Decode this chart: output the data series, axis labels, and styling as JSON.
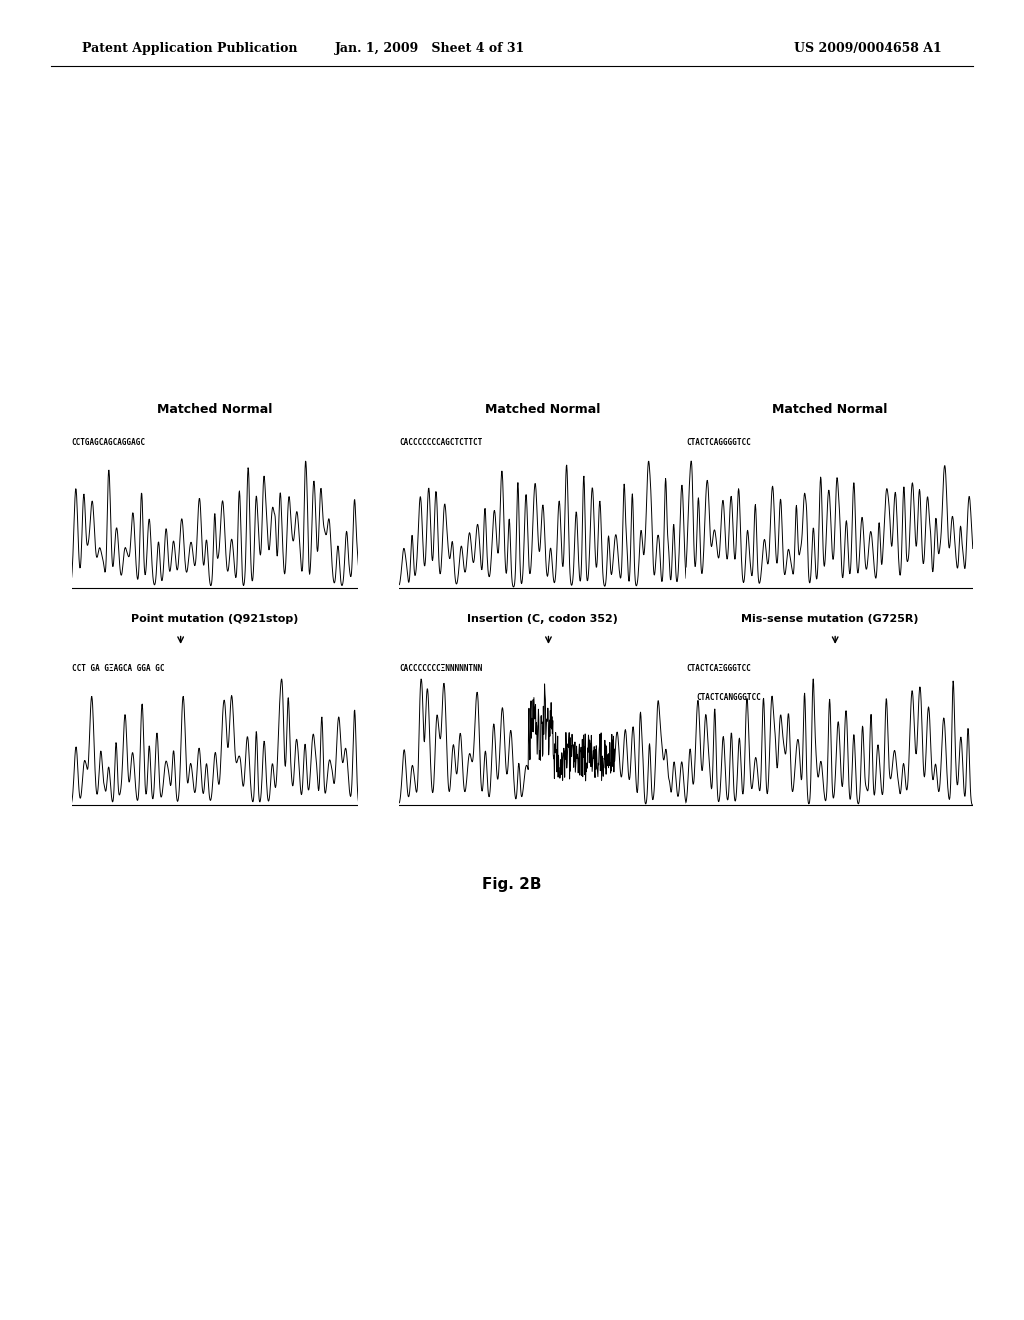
{
  "header_left": "Patent Application Publication",
  "header_mid": "Jan. 1, 2009   Sheet 4 of 31",
  "header_right": "US 2009/0004658 A1",
  "fig_label": "Fig. 2B",
  "panel1_title": "Matched Normal",
  "panel1_seq_top": "CCTGAGCAGCAGGAGC",
  "panel1_label": "Point mutation (Q921stop)",
  "panel1_seq_bot": "CCT GA GΞAGCA GGA GC",
  "panel2_title": "Matched Normal",
  "panel2_seq_top": "CACCCCCCCAGCTCTTCT",
  "panel2_label": "Insertion (C, codon 352)",
  "panel2_seq_bot": "CACCCCCCCΞNNNNNTNN",
  "panel3_title": "Matched Normal",
  "panel3_seq_top": "CTACTCAGGGGTCC",
  "panel3_label": "Mis-sense mutation (G725R)",
  "panel3_seq_bot": "CTACTCAΞGGGTCC",
  "background_color": "#ffffff",
  "text_color": "#000000",
  "chromatogram_color": "#000000"
}
